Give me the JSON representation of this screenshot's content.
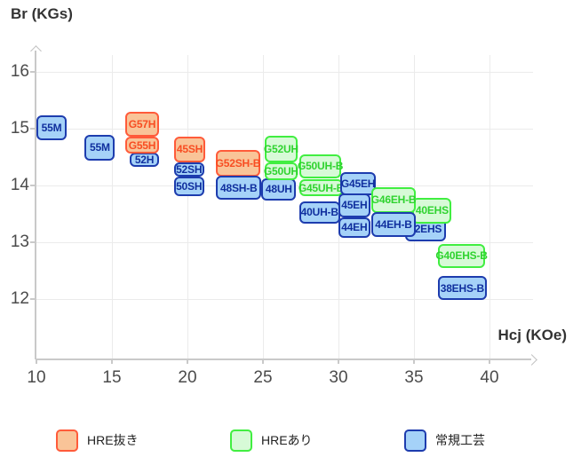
{
  "titles": {
    "y_axis": "Br (KGs)",
    "x_axis": "Hcj (KOe)"
  },
  "colors": {
    "hre_out": {
      "fill": "#f9c498",
      "border": "#ff5b3a",
      "text": "#f84d22"
    },
    "hre_in": {
      "fill": "#d7fad7",
      "border": "#41ee41",
      "text": "#2fd32f"
    },
    "normal": {
      "fill": "#a5d2f8",
      "border": "#1d3cae",
      "text": "#102f9e"
    }
  },
  "legend": {
    "items": [
      {
        "label": "HRE抜き",
        "group": "hre_out"
      },
      {
        "label": "HREあり",
        "group": "hre_in"
      },
      {
        "label": "常規工芸",
        "group": "normal"
      }
    ]
  },
  "chart_data": {
    "type": "scatter",
    "subtype": "labeled-range-boxes",
    "title": "",
    "xlabel": "Hcj (KOe)",
    "ylabel": "Br (KGs)",
    "xlim": [
      10,
      43
    ],
    "ylim": [
      11.3,
      16.6
    ],
    "x_ticks": [
      10,
      15,
      20,
      25,
      30,
      35,
      40
    ],
    "y_ticks": [
      16,
      15,
      14,
      13,
      12
    ],
    "grid": true,
    "legend_position": "bottom",
    "points": [
      {
        "label": "55M",
        "group": "normal",
        "hcj": [
          10.0,
          12.0
        ],
        "br": [
          14.8,
          15.23
        ]
      },
      {
        "label": "55M",
        "group": "normal",
        "hcj": [
          13.2,
          15.2
        ],
        "br": [
          14.44,
          14.89
        ]
      },
      {
        "label": "52H",
        "group": "normal",
        "hcj": [
          16.2,
          18.1
        ],
        "br": [
          14.33,
          14.58
        ]
      },
      {
        "label": "G55H",
        "group": "hre_out",
        "hcj": [
          15.9,
          18.1
        ],
        "br": [
          14.56,
          14.86
        ]
      },
      {
        "label": "G57H",
        "group": "hre_out",
        "hcj": [
          15.9,
          18.1
        ],
        "br": [
          14.86,
          15.3
        ]
      },
      {
        "label": "50SH",
        "group": "normal",
        "hcj": [
          19.1,
          21.1
        ],
        "br": [
          13.81,
          14.16
        ]
      },
      {
        "label": "52SH",
        "group": "normal",
        "hcj": [
          19.1,
          21.1
        ],
        "br": [
          14.16,
          14.41
        ]
      },
      {
        "label": "45SH",
        "group": "hre_out",
        "hcj": [
          19.1,
          21.2
        ],
        "br": [
          14.41,
          14.86
        ]
      },
      {
        "label": "G52SH-B",
        "group": "hre_out",
        "hcj": [
          21.9,
          24.8
        ],
        "br": [
          14.16,
          14.63
        ]
      },
      {
        "label": "48SH-B",
        "group": "normal",
        "hcj": [
          21.9,
          24.9
        ],
        "br": [
          13.75,
          14.17
        ]
      },
      {
        "label": "48UH",
        "group": "normal",
        "hcj": [
          24.9,
          27.2
        ],
        "br": [
          13.73,
          14.13
        ]
      },
      {
        "label": "G50UH",
        "group": "hre_in",
        "hcj": [
          25.1,
          27.3
        ],
        "br": [
          14.09,
          14.41
        ]
      },
      {
        "label": "G52UH",
        "group": "hre_in",
        "hcj": [
          25.1,
          27.3
        ],
        "br": [
          14.41,
          14.88
        ]
      },
      {
        "label": "40UH-B",
        "group": "normal",
        "hcj": [
          27.4,
          30.1
        ],
        "br": [
          13.33,
          13.72
        ]
      },
      {
        "label": "G45UH-B",
        "group": "hre_in",
        "hcj": [
          27.4,
          30.3
        ],
        "br": [
          13.81,
          14.11
        ]
      },
      {
        "label": "G50UH-B",
        "group": "hre_in",
        "hcj": [
          27.4,
          30.2
        ],
        "br": [
          14.13,
          14.55
        ]
      },
      {
        "label": "G45EH",
        "group": "normal",
        "hcj": [
          30.1,
          32.5
        ],
        "br": [
          13.83,
          14.23
        ]
      },
      {
        "label": "45EH",
        "group": "normal",
        "hcj": [
          30.0,
          32.1
        ],
        "br": [
          13.44,
          13.86
        ]
      },
      {
        "label": "44EH",
        "group": "normal",
        "hcj": [
          30.0,
          32.1
        ],
        "br": [
          13.08,
          13.44
        ]
      },
      {
        "label": "42EHS",
        "group": "normal",
        "hcj": [
          34.4,
          37.1
        ],
        "br": [
          13.02,
          13.44
        ]
      },
      {
        "label": "40EHS",
        "group": "hre_in",
        "hcj": [
          34.9,
          37.5
        ],
        "br": [
          13.33,
          13.78
        ]
      },
      {
        "label": "G46EH-B",
        "group": "hre_in",
        "hcj": [
          32.2,
          35.1
        ],
        "br": [
          13.52,
          13.97
        ]
      },
      {
        "label": "44EH-B",
        "group": "normal",
        "hcj": [
          32.2,
          35.1
        ],
        "br": [
          13.09,
          13.53
        ]
      },
      {
        "label": "G40EHS-B",
        "group": "hre_in",
        "hcj": [
          36.6,
          39.7
        ],
        "br": [
          12.55,
          12.97
        ]
      },
      {
        "label": "38EHS-B",
        "group": "normal",
        "hcj": [
          36.6,
          39.8
        ],
        "br": [
          11.98,
          12.41
        ]
      }
    ]
  }
}
